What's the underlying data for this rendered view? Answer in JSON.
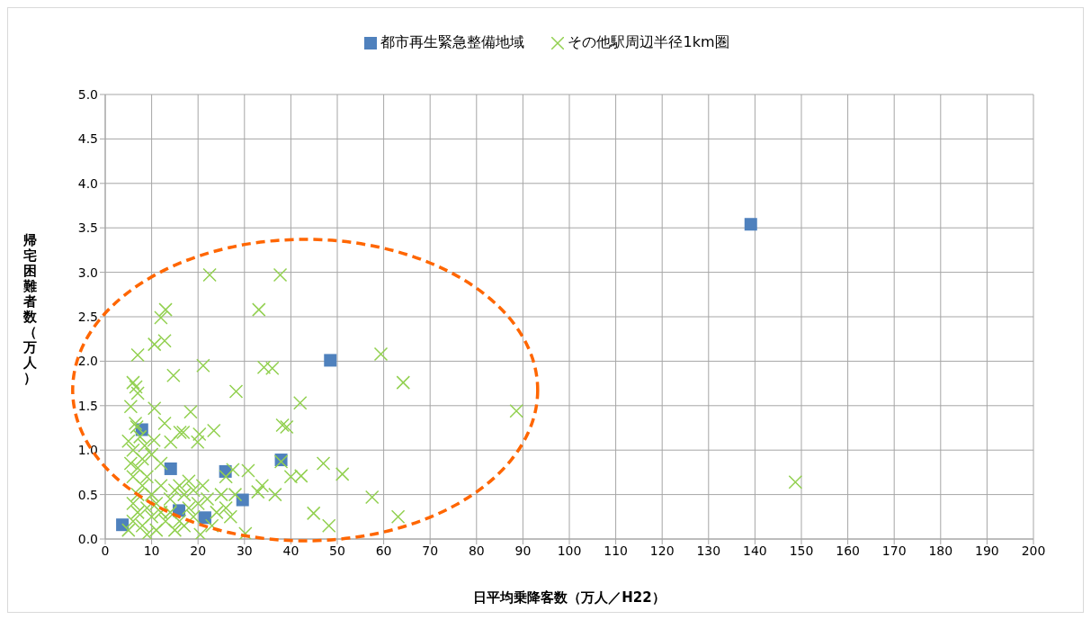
{
  "chart_data": {
    "type": "scatter",
    "xlabel": "日平均乗降客数（万人／H22）",
    "ylabel": "帰宅困難者数（万人）",
    "xlim": [
      0,
      200
    ],
    "xticks": [
      0,
      10,
      20,
      30,
      40,
      50,
      60,
      70,
      80,
      90,
      100,
      110,
      120,
      130,
      140,
      150,
      160,
      170,
      180,
      190,
      200
    ],
    "ylim": [
      0,
      5
    ],
    "yticks": [
      {
        "value": 0,
        "label": "0.0"
      },
      {
        "value": 0.5,
        "label": "0.5"
      },
      {
        "value": 1,
        "label": "1.0"
      },
      {
        "value": 1.5,
        "label": "1.5"
      },
      {
        "value": 2,
        "label": "2.0"
      },
      {
        "value": 2.5,
        "label": "2.5"
      },
      {
        "value": 3,
        "label": "3.0"
      },
      {
        "value": 3.5,
        "label": "3.5"
      },
      {
        "value": 4,
        "label": "4.0"
      },
      {
        "value": 4.5,
        "label": "4.5"
      },
      {
        "value": 5,
        "label": "5.0"
      }
    ],
    "grid": true,
    "legend": "top",
    "series": [
      {
        "name": "都市再生緊急整備地域",
        "color": "#4f81bd",
        "marker": "square",
        "x": [
          3.7,
          7.9,
          14.1,
          15.9,
          21.5,
          25.9,
          29.6,
          37.9,
          48.5,
          139.1
        ],
        "values": [
          0.16,
          1.23,
          0.79,
          0.32,
          0.24,
          0.76,
          0.44,
          0.89,
          2.01,
          3.54
        ]
      },
      {
        "name": "その他駅周辺半径1km圏",
        "color": "#92d050",
        "marker": "cross",
        "x": [
          22.5,
          37.7,
          13.0,
          33.1,
          12.0,
          10.6,
          12.8,
          7.0,
          59.4,
          14.7,
          21.1,
          34.2,
          36.0,
          64.2,
          6.0,
          6.6,
          7.0,
          28.2,
          42.0,
          88.6,
          5.5,
          10.6,
          18.4,
          12.8,
          6.8,
          38.2,
          39.1,
          23.4,
          16.8,
          16.1,
          20.3,
          10.5,
          19.9,
          14.1,
          47.0,
          51.1,
          42.2,
          40.0,
          37.9,
          30.8,
          27.5,
          33.8,
          32.9,
          36.6,
          57.5,
          148.7,
          44.9,
          48.2,
          63.1,
          30.2,
          20.5,
          5,
          6,
          7,
          8,
          9,
          6,
          7,
          8,
          6,
          7,
          8,
          6,
          5,
          9,
          10,
          11,
          12,
          13,
          11,
          10,
          9,
          12,
          14,
          15,
          16,
          17,
          18,
          19,
          18,
          20,
          22,
          24,
          25,
          26,
          27,
          23,
          17,
          15,
          6.5,
          7.5,
          5.5,
          8.5,
          12,
          10,
          14,
          16,
          19,
          21,
          28,
          26
        ],
        "values": [
          2.97,
          2.97,
          2.58,
          2.58,
          2.49,
          2.19,
          2.23,
          2.07,
          2.08,
          1.84,
          1.95,
          1.93,
          1.92,
          1.76,
          1.76,
          1.71,
          1.64,
          1.66,
          1.53,
          1.44,
          1.49,
          1.47,
          1.43,
          1.3,
          1.26,
          1.28,
          1.26,
          1.22,
          1.2,
          1.2,
          1.18,
          1.11,
          1.09,
          1.09,
          0.85,
          0.73,
          0.71,
          0.7,
          0.87,
          0.77,
          0.78,
          0.6,
          0.53,
          0.5,
          0.47,
          0.64,
          0.29,
          0.15,
          0.25,
          0.06,
          0.05,
          0.1,
          0.2,
          0.3,
          0.15,
          0.05,
          0.4,
          0.5,
          0.6,
          0.7,
          0.8,
          0.9,
          1.0,
          1.1,
          0.35,
          0.25,
          0.4,
          0.3,
          0.2,
          0.1,
          0.5,
          0.7,
          0.6,
          0.45,
          0.55,
          0.6,
          0.5,
          0.65,
          0.55,
          0.35,
          0.4,
          0.45,
          0.3,
          0.5,
          0.35,
          0.25,
          0.15,
          0.15,
          0.1,
          1.3,
          1.15,
          0.85,
          1.05,
          0.85,
          0.95,
          0.3,
          0.2,
          0.25,
          0.6,
          0.5,
          0.7
        ]
      }
    ]
  }
}
